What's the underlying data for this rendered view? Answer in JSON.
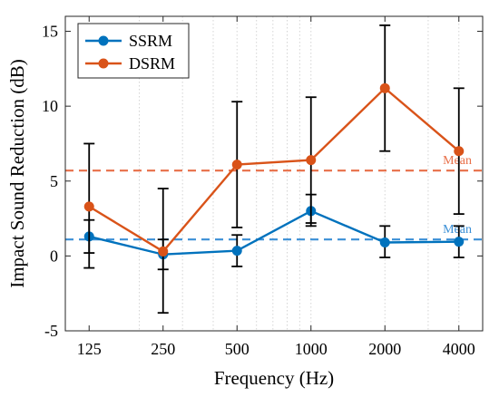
{
  "chart_data": {
    "type": "line",
    "title": "",
    "xlabel": "Frequency (Hz)",
    "ylabel": "Impact Sound Reduction (dB)",
    "x_scale": "log",
    "x": [
      125,
      250,
      500,
      1000,
      2000,
      4000
    ],
    "x_tick_labels": [
      "125",
      "250",
      "500",
      "1000",
      "2000",
      "4000"
    ],
    "xlim": [
      100,
      5000
    ],
    "ylim": [
      -5,
      16
    ],
    "y_ticks": [
      -5,
      0,
      5,
      10,
      15
    ],
    "y_tick_labels": [
      "-5",
      "0",
      "5",
      "10",
      "15"
    ],
    "grid": "x-log-minor-dotted",
    "legend_position": "top-left",
    "series": [
      {
        "name": "SSRM",
        "color": "#0072BD",
        "values": [
          1.3,
          0.1,
          0.35,
          3.0,
          0.9,
          0.95
        ],
        "error_lower": [
          -0.8,
          -0.9,
          -0.7,
          2.0,
          -0.1,
          -0.1
        ],
        "error_upper": [
          2.4,
          1.1,
          1.4,
          4.1,
          2.0,
          2.0
        ],
        "mean": 1.1,
        "mean_label": "Mean"
      },
      {
        "name": "DSRM",
        "color": "#D95319",
        "values": [
          3.3,
          0.3,
          6.1,
          6.4,
          11.2,
          7.0
        ],
        "error_lower": [
          0.2,
          -3.8,
          1.9,
          2.2,
          7.0,
          2.8
        ],
        "error_upper": [
          7.5,
          4.5,
          10.3,
          10.6,
          15.4,
          11.2
        ],
        "mean": 5.7,
        "mean_label": "Mean"
      }
    ],
    "mean_line_colors": [
      "#3A8FD6",
      "#E86F48"
    ],
    "error_bar_color": "#000000"
  }
}
